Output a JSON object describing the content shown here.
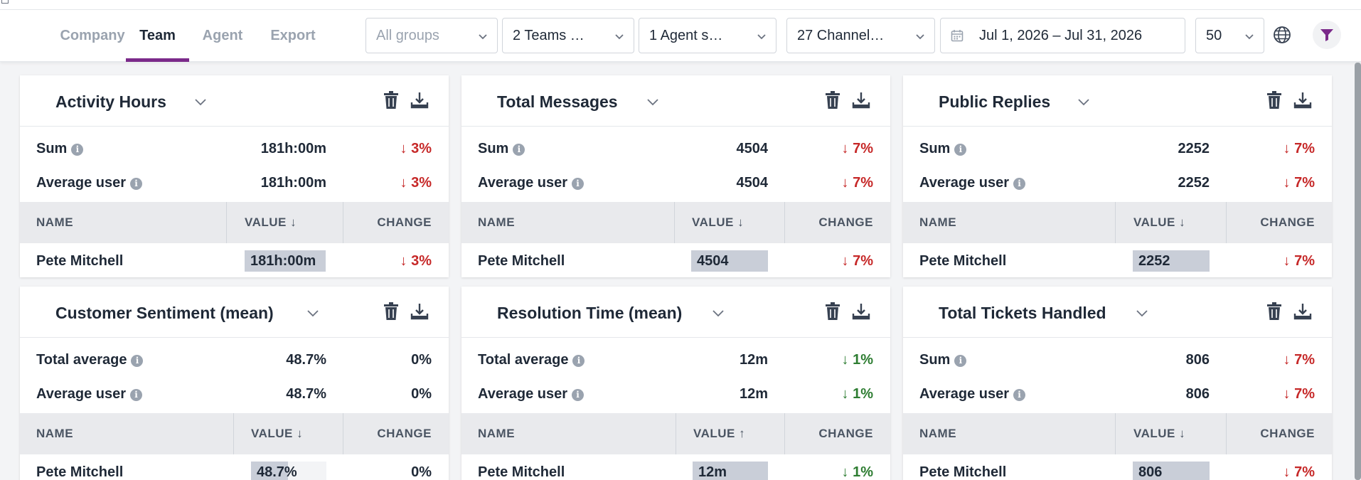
{
  "nav": {
    "tabs": [
      "Company",
      "Team",
      "Agent",
      "Export"
    ],
    "active_tab": "Team"
  },
  "filters": {
    "groups": "All groups",
    "teams": "2 Teams …",
    "agents": "1 Agent s…",
    "channels": "27 Channel…",
    "date_range": "Jul 1, 2026 – Jul 31, 2026",
    "page_size": "50"
  },
  "colors": {
    "accent": "#7b2a8a",
    "down_red": "#c62828",
    "down_green": "#2e7d32",
    "bar": "#c9ced8"
  },
  "cards": [
    {
      "title": "Activity Hours",
      "stats": [
        {
          "label": "Sum",
          "value": "181h:00m",
          "change": "↓ 3%",
          "tone": "red"
        },
        {
          "label": "Average user",
          "value": "181h:00m",
          "change": "↓ 3%",
          "tone": "red"
        }
      ],
      "headers": {
        "name": "NAME",
        "value": "VALUE",
        "sort": "↓",
        "change": "CHANGE"
      },
      "rows": [
        {
          "name": "Pete Mitchell",
          "value": "181h:00m",
          "fill": 1.0,
          "change": "↓ 3%",
          "tone": "red"
        }
      ]
    },
    {
      "title": "Total Messages",
      "stats": [
        {
          "label": "Sum",
          "value": "4504",
          "change": "↓ 7%",
          "tone": "red"
        },
        {
          "label": "Average user",
          "value": "4504",
          "change": "↓ 7%",
          "tone": "red"
        }
      ],
      "headers": {
        "name": "NAME",
        "value": "VALUE",
        "sort": "↓",
        "change": "CHANGE"
      },
      "rows": [
        {
          "name": "Pete Mitchell",
          "value": "4504",
          "fill": 1.0,
          "change": "↓ 7%",
          "tone": "red"
        }
      ]
    },
    {
      "title": "Public Replies",
      "stats": [
        {
          "label": "Sum",
          "value": "2252",
          "change": "↓ 7%",
          "tone": "red"
        },
        {
          "label": "Average user",
          "value": "2252",
          "change": "↓ 7%",
          "tone": "red"
        }
      ],
      "headers": {
        "name": "NAME",
        "value": "VALUE",
        "sort": "↓",
        "change": "CHANGE"
      },
      "rows": [
        {
          "name": "Pete Mitchell",
          "value": "2252",
          "fill": 1.0,
          "change": "↓ 7%",
          "tone": "red"
        }
      ]
    },
    {
      "title": "Customer Sentiment (mean)",
      "stats": [
        {
          "label": "Total average",
          "value": "48.7%",
          "change": "0%",
          "tone": "neutral"
        },
        {
          "label": "Average user",
          "value": "48.7%",
          "change": "0%",
          "tone": "neutral"
        }
      ],
      "headers": {
        "name": "NAME",
        "value": "VALUE",
        "sort": "↓",
        "change": "CHANGE"
      },
      "rows": [
        {
          "name": "Pete Mitchell",
          "value": "48.7%",
          "fill": 0.487,
          "change": "0%",
          "tone": "neutral"
        }
      ]
    },
    {
      "title": "Resolution Time (mean)",
      "stats": [
        {
          "label": "Total average",
          "value": "12m",
          "change": "↓ 1%",
          "tone": "green"
        },
        {
          "label": "Average user",
          "value": "12m",
          "change": "↓ 1%",
          "tone": "green"
        }
      ],
      "headers": {
        "name": "NAME",
        "value": "VALUE",
        "sort": "↑",
        "change": "CHANGE"
      },
      "rows": [
        {
          "name": "Pete Mitchell",
          "value": "12m",
          "fill": 1.0,
          "change": "↓ 1%",
          "tone": "green"
        }
      ]
    },
    {
      "title": "Total Tickets Handled",
      "stats": [
        {
          "label": "Sum",
          "value": "806",
          "change": "↓ 7%",
          "tone": "red"
        },
        {
          "label": "Average user",
          "value": "806",
          "change": "↓ 7%",
          "tone": "red"
        }
      ],
      "headers": {
        "name": "NAME",
        "value": "VALUE",
        "sort": "↓",
        "change": "CHANGE"
      },
      "rows": [
        {
          "name": "Pete Mitchell",
          "value": "806",
          "fill": 1.0,
          "change": "↓ 7%",
          "tone": "red"
        }
      ]
    }
  ]
}
